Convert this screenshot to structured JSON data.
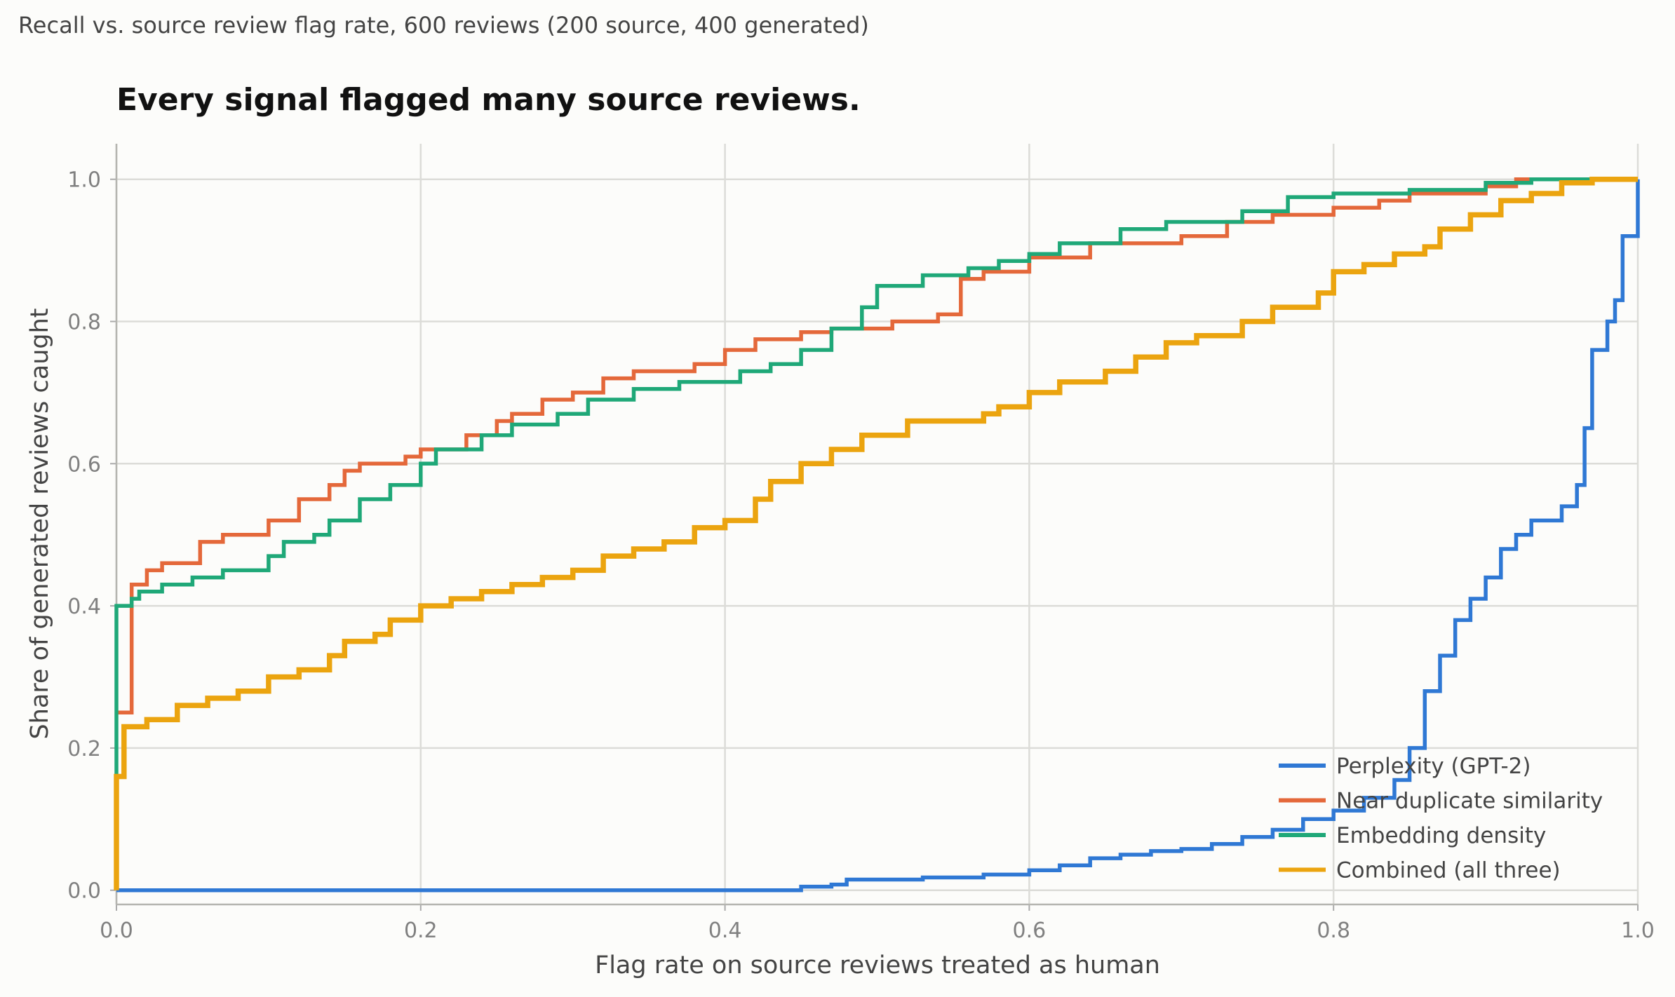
{
  "header": "Recall vs. source review flag rate, 600 reviews (200 source, 400 generated)",
  "chart_data": {
    "type": "line",
    "title": "Every signal flagged many source reviews.",
    "xlabel": "Flag rate on source reviews treated as human",
    "ylabel": "Share of generated reviews caught",
    "xlim": [
      0,
      1
    ],
    "ylim": [
      -0.02,
      1.05
    ],
    "xticks": [
      0.0,
      0.2,
      0.4,
      0.6,
      0.8,
      1.0
    ],
    "yticks": [
      0.0,
      0.2,
      0.4,
      0.6,
      0.8,
      1.0
    ],
    "xtick_labels": [
      "0.0",
      "0.2",
      "0.4",
      "0.6",
      "0.8",
      "1.0"
    ],
    "ytick_labels": [
      "0.0",
      "0.2",
      "0.4",
      "0.6",
      "0.8",
      "1.0"
    ],
    "grid": true,
    "legend_position": "bottom-right",
    "series": [
      {
        "name": "Perplexity (GPT-2)",
        "color": "#2f78d4",
        "points": [
          [
            0,
            0
          ],
          [
            0.45,
            0
          ],
          [
            0.45,
            0.005
          ],
          [
            0.47,
            0.008
          ],
          [
            0.48,
            0.015
          ],
          [
            0.53,
            0.018
          ],
          [
            0.57,
            0.022
          ],
          [
            0.6,
            0.028
          ],
          [
            0.62,
            0.035
          ],
          [
            0.64,
            0.045
          ],
          [
            0.66,
            0.05
          ],
          [
            0.68,
            0.055
          ],
          [
            0.7,
            0.058
          ],
          [
            0.72,
            0.065
          ],
          [
            0.74,
            0.075
          ],
          [
            0.76,
            0.085
          ],
          [
            0.78,
            0.1
          ],
          [
            0.8,
            0.112
          ],
          [
            0.82,
            0.13
          ],
          [
            0.84,
            0.155
          ],
          [
            0.85,
            0.2
          ],
          [
            0.86,
            0.28
          ],
          [
            0.87,
            0.33
          ],
          [
            0.88,
            0.38
          ],
          [
            0.89,
            0.41
          ],
          [
            0.9,
            0.44
          ],
          [
            0.91,
            0.48
          ],
          [
            0.92,
            0.5
          ],
          [
            0.93,
            0.52
          ],
          [
            0.95,
            0.54
          ],
          [
            0.96,
            0.57
          ],
          [
            0.965,
            0.65
          ],
          [
            0.97,
            0.76
          ],
          [
            0.98,
            0.8
          ],
          [
            0.985,
            0.83
          ],
          [
            0.99,
            0.92
          ],
          [
            1.0,
            1.0
          ]
        ]
      },
      {
        "name": "Near duplicate similarity",
        "color": "#e4683a",
        "points": [
          [
            0,
            0.25
          ],
          [
            0.01,
            0.25
          ],
          [
            0.01,
            0.43
          ],
          [
            0.02,
            0.45
          ],
          [
            0.03,
            0.46
          ],
          [
            0.055,
            0.49
          ],
          [
            0.07,
            0.5
          ],
          [
            0.1,
            0.52
          ],
          [
            0.12,
            0.55
          ],
          [
            0.14,
            0.57
          ],
          [
            0.15,
            0.59
          ],
          [
            0.16,
            0.6
          ],
          [
            0.19,
            0.61
          ],
          [
            0.2,
            0.62
          ],
          [
            0.23,
            0.64
          ],
          [
            0.25,
            0.66
          ],
          [
            0.26,
            0.67
          ],
          [
            0.28,
            0.69
          ],
          [
            0.3,
            0.7
          ],
          [
            0.32,
            0.72
          ],
          [
            0.34,
            0.73
          ],
          [
            0.38,
            0.74
          ],
          [
            0.4,
            0.76
          ],
          [
            0.42,
            0.775
          ],
          [
            0.45,
            0.785
          ],
          [
            0.47,
            0.79
          ],
          [
            0.51,
            0.8
          ],
          [
            0.54,
            0.81
          ],
          [
            0.555,
            0.86
          ],
          [
            0.57,
            0.87
          ],
          [
            0.6,
            0.89
          ],
          [
            0.64,
            0.91
          ],
          [
            0.7,
            0.92
          ],
          [
            0.73,
            0.94
          ],
          [
            0.76,
            0.95
          ],
          [
            0.8,
            0.96
          ],
          [
            0.83,
            0.97
          ],
          [
            0.85,
            0.98
          ],
          [
            0.9,
            0.99
          ],
          [
            0.92,
            1.0
          ],
          [
            1.0,
            1.0
          ]
        ]
      },
      {
        "name": "Embedding density",
        "color": "#1fa878",
        "points": [
          [
            0,
            0.16
          ],
          [
            0,
            0.4
          ],
          [
            0.01,
            0.41
          ],
          [
            0.015,
            0.42
          ],
          [
            0.03,
            0.43
          ],
          [
            0.05,
            0.44
          ],
          [
            0.07,
            0.45
          ],
          [
            0.1,
            0.47
          ],
          [
            0.11,
            0.49
          ],
          [
            0.13,
            0.5
          ],
          [
            0.14,
            0.52
          ],
          [
            0.16,
            0.55
          ],
          [
            0.18,
            0.57
          ],
          [
            0.2,
            0.6
          ],
          [
            0.21,
            0.62
          ],
          [
            0.24,
            0.64
          ],
          [
            0.26,
            0.655
          ],
          [
            0.29,
            0.67
          ],
          [
            0.31,
            0.69
          ],
          [
            0.34,
            0.705
          ],
          [
            0.37,
            0.715
          ],
          [
            0.41,
            0.73
          ],
          [
            0.43,
            0.74
          ],
          [
            0.45,
            0.76
          ],
          [
            0.47,
            0.79
          ],
          [
            0.49,
            0.82
          ],
          [
            0.5,
            0.85
          ],
          [
            0.53,
            0.865
          ],
          [
            0.56,
            0.875
          ],
          [
            0.58,
            0.885
          ],
          [
            0.6,
            0.895
          ],
          [
            0.62,
            0.91
          ],
          [
            0.66,
            0.93
          ],
          [
            0.69,
            0.94
          ],
          [
            0.74,
            0.955
          ],
          [
            0.77,
            0.975
          ],
          [
            0.8,
            0.98
          ],
          [
            0.85,
            0.985
          ],
          [
            0.9,
            0.995
          ],
          [
            0.93,
            1.0
          ],
          [
            1.0,
            1.0
          ]
        ]
      },
      {
        "name": "Combined (all three)",
        "color": "#eba40f",
        "points": [
          [
            0,
            0
          ],
          [
            0,
            0.16
          ],
          [
            0.005,
            0.16
          ],
          [
            0.005,
            0.23
          ],
          [
            0.02,
            0.24
          ],
          [
            0.04,
            0.26
          ],
          [
            0.06,
            0.27
          ],
          [
            0.08,
            0.28
          ],
          [
            0.1,
            0.3
          ],
          [
            0.12,
            0.31
          ],
          [
            0.14,
            0.33
          ],
          [
            0.15,
            0.35
          ],
          [
            0.17,
            0.36
          ],
          [
            0.18,
            0.38
          ],
          [
            0.2,
            0.4
          ],
          [
            0.22,
            0.41
          ],
          [
            0.24,
            0.42
          ],
          [
            0.26,
            0.43
          ],
          [
            0.28,
            0.44
          ],
          [
            0.3,
            0.45
          ],
          [
            0.32,
            0.47
          ],
          [
            0.34,
            0.48
          ],
          [
            0.36,
            0.49
          ],
          [
            0.38,
            0.51
          ],
          [
            0.4,
            0.52
          ],
          [
            0.42,
            0.55
          ],
          [
            0.43,
            0.575
          ],
          [
            0.45,
            0.6
          ],
          [
            0.47,
            0.62
          ],
          [
            0.49,
            0.64
          ],
          [
            0.52,
            0.66
          ],
          [
            0.57,
            0.67
          ],
          [
            0.58,
            0.68
          ],
          [
            0.6,
            0.7
          ],
          [
            0.62,
            0.715
          ],
          [
            0.65,
            0.73
          ],
          [
            0.67,
            0.75
          ],
          [
            0.69,
            0.77
          ],
          [
            0.71,
            0.78
          ],
          [
            0.74,
            0.8
          ],
          [
            0.76,
            0.82
          ],
          [
            0.79,
            0.84
          ],
          [
            0.8,
            0.87
          ],
          [
            0.82,
            0.88
          ],
          [
            0.84,
            0.895
          ],
          [
            0.86,
            0.905
          ],
          [
            0.87,
            0.93
          ],
          [
            0.89,
            0.95
          ],
          [
            0.91,
            0.97
          ],
          [
            0.93,
            0.98
          ],
          [
            0.95,
            0.995
          ],
          [
            0.97,
            1.0
          ],
          [
            1.0,
            1.0
          ]
        ]
      }
    ]
  }
}
